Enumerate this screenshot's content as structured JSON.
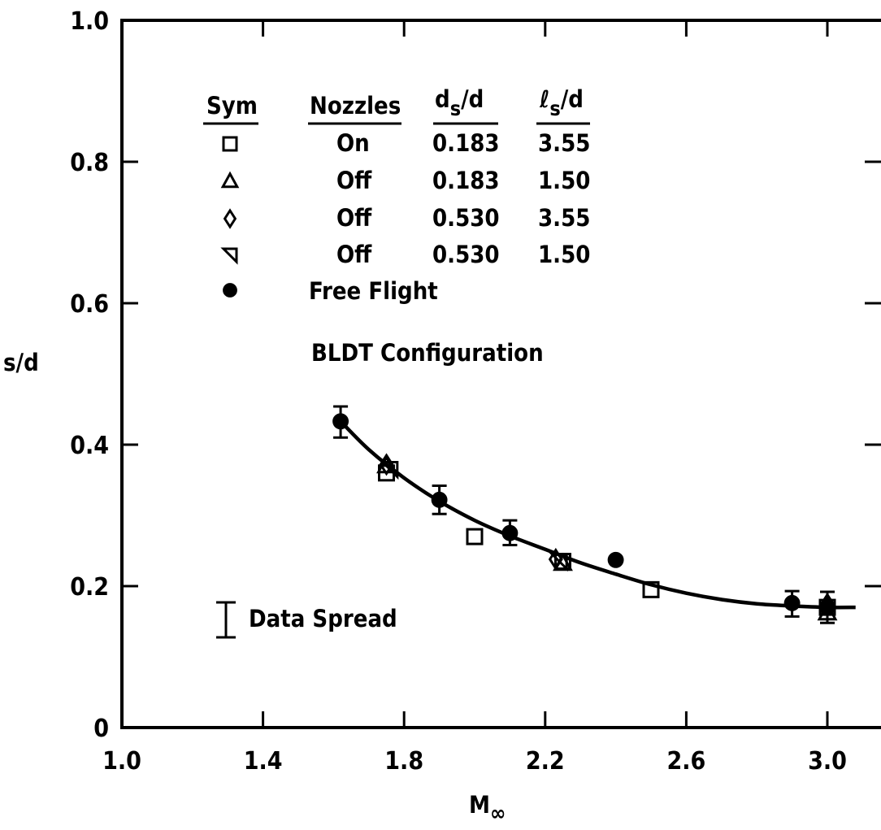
{
  "chart_data": {
    "type": "scatter",
    "title": "",
    "xlabel": "M∞",
    "xlabel_main": "M",
    "xlabel_sub": "∞",
    "ylabel": "s/d",
    "xlim": [
      1.0,
      3.16
    ],
    "ylim": [
      0,
      1.0
    ],
    "x_ticks": [
      1.0,
      1.4,
      1.8,
      2.2,
      2.6,
      3.0
    ],
    "x_tick_labels": [
      "1.0",
      "1.4",
      "1.8",
      "2.2",
      "2.6",
      "3.0"
    ],
    "y_ticks": [
      0,
      0.2,
      0.4,
      0.6,
      0.8,
      1.0
    ],
    "y_tick_labels": [
      "0",
      "0.2",
      "0.4",
      "0.6",
      "0.8",
      "1.0"
    ],
    "grid": false,
    "legend_position": "top-left",
    "legend": {
      "headers": {
        "sym": "Sym",
        "nozzles": "Nozzles",
        "ds": {
          "main": "d",
          "sub": "s",
          "rest": "/d"
        },
        "ls": {
          "main": "ℓ",
          "sub": "s",
          "rest": "/d"
        }
      },
      "rows": [
        {
          "marker": "square",
          "nozzles": "On",
          "ds_d": "0.183",
          "ls_d": "3.55"
        },
        {
          "marker": "triangle-up",
          "nozzles": "Off",
          "ds_d": "0.183",
          "ls_d": "1.50"
        },
        {
          "marker": "diamond",
          "nozzles": "Off",
          "ds_d": "0.530",
          "ls_d": "3.55"
        },
        {
          "marker": "triangle-left",
          "nozzles": "Off",
          "ds_d": "0.530",
          "ls_d": "1.50"
        },
        {
          "marker": "circle-filled",
          "label": "Free Flight"
        }
      ]
    },
    "annotation": "BLDT Configuration",
    "data_spread_label": "Data Spread",
    "series": [
      {
        "name": "On 0.183 3.55",
        "marker": "square",
        "x": [
          1.75,
          2.0,
          2.25,
          2.5,
          3.0
        ],
        "y": [
          0.36,
          0.27,
          0.235,
          0.195,
          0.17
        ]
      },
      {
        "name": "Off 0.183 1.50",
        "marker": "triangle-up",
        "x": [
          1.75,
          2.25,
          3.0
        ],
        "y": [
          0.37,
          0.232,
          0.162
        ]
      },
      {
        "name": "Off 0.530 3.55",
        "marker": "diamond",
        "x": [
          1.75,
          2.23,
          3.0
        ],
        "y": [
          0.372,
          0.238,
          0.175
        ]
      },
      {
        "name": "Off 0.530 1.50",
        "marker": "triangle-left",
        "x": [
          1.76,
          2.24
        ],
        "y": [
          0.365,
          0.235
        ]
      },
      {
        "name": "Free Flight",
        "marker": "circle-filled",
        "x": [
          1.62,
          1.9,
          2.1,
          2.4,
          2.9,
          3.0
        ],
        "y": [
          0.433,
          0.322,
          0.275,
          0.237,
          0.176,
          0.17
        ],
        "err_low": [
          0.41,
          0.302,
          0.258,
          null,
          0.157,
          0.148
        ],
        "err_high": [
          0.454,
          0.342,
          0.293,
          null,
          0.193,
          0.192
        ]
      }
    ],
    "fit_curve": {
      "x": [
        1.62,
        1.7,
        1.8,
        1.9,
        2.0,
        2.1,
        2.2,
        2.3,
        2.4,
        2.5,
        2.6,
        2.7,
        2.8,
        2.9,
        3.0,
        3.08
      ],
      "y": [
        0.433,
        0.393,
        0.353,
        0.32,
        0.293,
        0.271,
        0.252,
        0.233,
        0.217,
        0.202,
        0.19,
        0.181,
        0.175,
        0.172,
        0.17,
        0.17
      ]
    }
  }
}
